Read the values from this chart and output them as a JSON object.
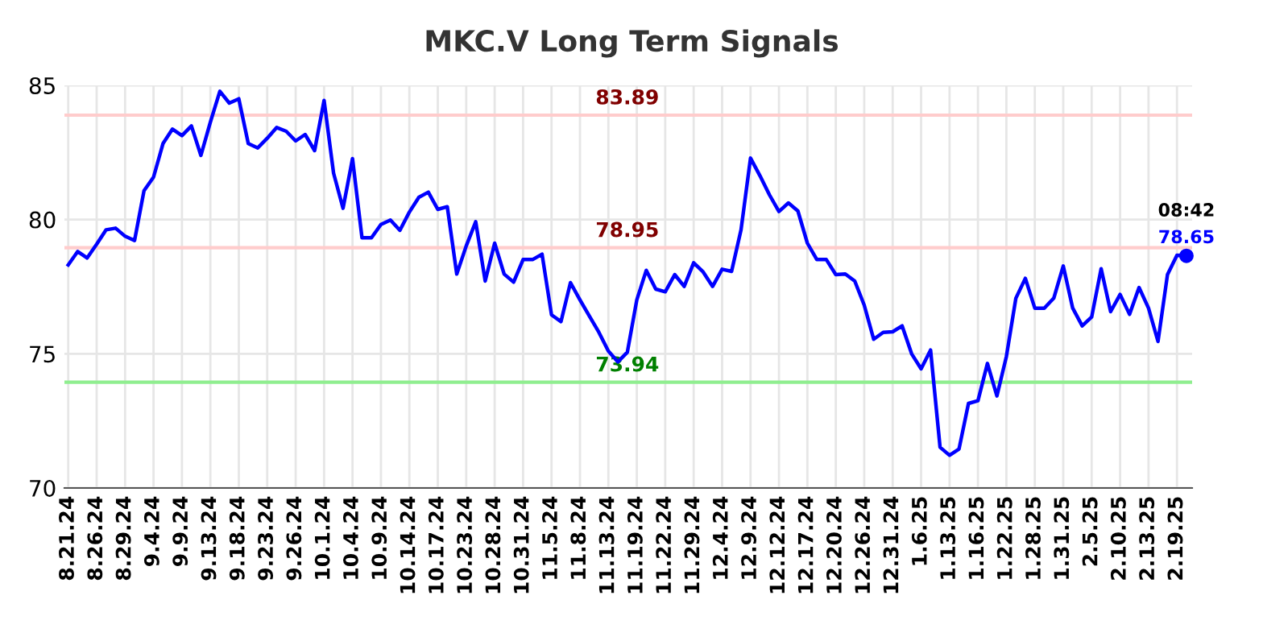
{
  "chart_data": {
    "type": "line",
    "title": "MKC.V Long Term Signals",
    "categories": [
      "8.21.24",
      null,
      null,
      "8.26.24",
      null,
      null,
      "8.29.24",
      null,
      null,
      "9.4.24",
      null,
      null,
      "9.9.24",
      null,
      null,
      "9.13.24",
      null,
      null,
      "9.18.24",
      null,
      null,
      "9.23.24",
      null,
      null,
      "9.26.24",
      null,
      null,
      "10.1.24",
      null,
      null,
      "10.4.24",
      null,
      null,
      "10.9.24",
      null,
      null,
      "10.14.24",
      null,
      null,
      "10.17.24",
      null,
      null,
      "10.23.24",
      null,
      null,
      "10.28.24",
      null,
      null,
      "10.31.24",
      null,
      null,
      "11.5.24",
      null,
      null,
      "11.8.24",
      null,
      null,
      "11.13.24",
      null,
      null,
      "11.19.24",
      null,
      null,
      "11.22.24",
      null,
      null,
      "11.29.24",
      null,
      null,
      "12.4.24",
      null,
      null,
      "12.9.24",
      null,
      null,
      "12.12.24",
      null,
      null,
      "12.17.24",
      null,
      null,
      "12.20.24",
      null,
      null,
      "12.26.24",
      null,
      null,
      "12.31.24",
      null,
      null,
      "1.6.25",
      null,
      null,
      "1.13.25",
      null,
      null,
      "1.16.25",
      null,
      null,
      "1.22.25",
      null,
      null,
      "1.28.25",
      null,
      null,
      "1.31.25",
      null,
      null,
      "2.5.25",
      null,
      null,
      "2.10.25",
      null,
      null,
      "2.13.25",
      null,
      null,
      "2.19.25",
      null
    ],
    "series": [
      {
        "color": "#0000ff",
        "values": [
          78.31,
          78.81,
          78.57,
          79.08,
          79.62,
          79.68,
          79.38,
          79.22,
          81.08,
          81.58,
          82.83,
          83.37,
          83.13,
          83.49,
          82.39,
          83.63,
          84.78,
          84.34,
          84.5,
          82.83,
          82.67,
          83.03,
          83.43,
          83.29,
          82.93,
          83.17,
          82.57,
          84.44,
          81.73,
          80.42,
          82.27,
          79.32,
          79.32,
          79.82,
          79.98,
          79.6,
          80.28,
          80.83,
          81.02,
          80.38,
          80.48,
          77.97,
          79.02,
          79.92,
          77.71,
          79.12,
          77.97,
          77.67,
          78.51,
          78.51,
          78.71,
          76.45,
          76.2,
          77.65,
          77.01,
          76.4,
          75.8,
          75.1,
          74.7,
          75.06,
          77.01,
          78.11,
          77.41,
          77.31,
          77.95,
          77.51,
          78.39,
          78.05,
          77.51,
          78.15,
          78.07,
          79.62,
          82.29,
          81.63,
          80.92,
          80.3,
          80.62,
          80.32,
          79.12,
          78.51,
          78.51,
          77.95,
          77.97,
          77.71,
          76.81,
          75.54,
          75.8,
          75.82,
          76.04,
          75.0,
          74.44,
          75.14,
          71.52,
          71.22,
          71.45,
          73.15,
          73.25,
          74.64,
          73.43,
          74.9,
          77.07,
          77.81,
          76.7,
          76.7,
          77.07,
          78.27,
          76.7,
          76.04,
          76.37,
          78.17,
          76.57,
          77.21,
          76.47,
          77.47,
          76.7,
          75.46,
          77.95,
          78.67,
          78.65
        ]
      }
    ],
    "ylim": [
      70,
      85
    ],
    "yticks": [
      70,
      75,
      80,
      85
    ],
    "ref_lines": [
      {
        "axis": "y",
        "value": 83.89,
        "label": "83.89",
        "color": "#ffcccc"
      },
      {
        "axis": "y",
        "value": 78.95,
        "label": "78.95",
        "color": "#ffcccc"
      },
      {
        "axis": "y",
        "value": 73.94,
        "label": "73.94",
        "color": "#90ee90"
      }
    ],
    "annotations": [
      {
        "text": "08:42",
        "y": 78.65
      },
      {
        "text": "78.65",
        "y": 78.65
      }
    ],
    "grid": true,
    "legend": false
  }
}
